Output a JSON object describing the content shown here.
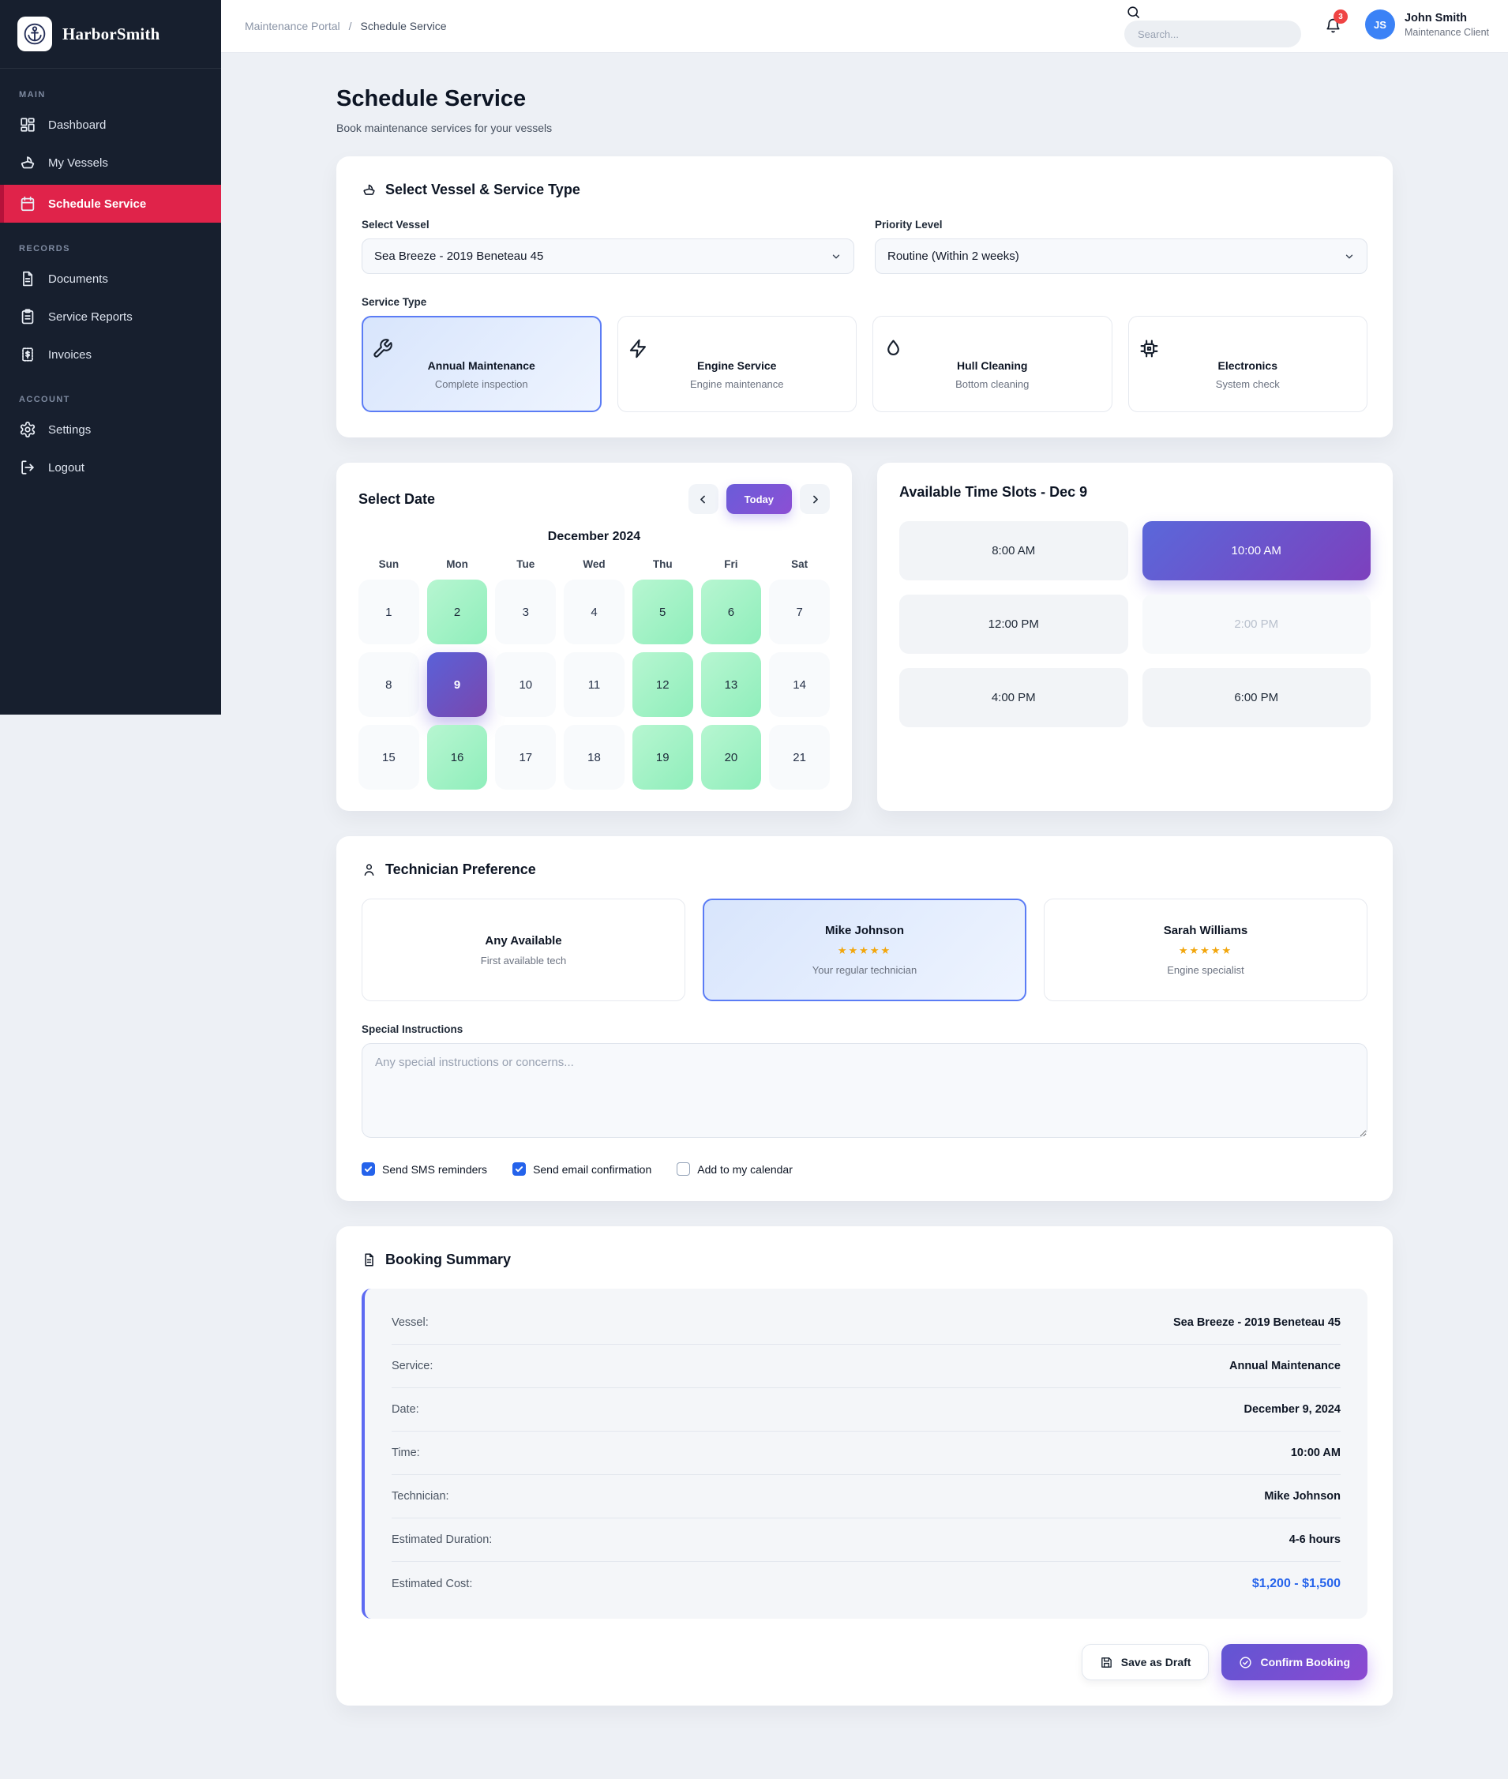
{
  "brand": {
    "name": "HarborSmith"
  },
  "sidebar": {
    "sections": [
      {
        "label": "MAIN",
        "items": [
          {
            "label": "Dashboard",
            "icon": "dashboard-icon",
            "active": false
          },
          {
            "label": "My Vessels",
            "icon": "boat-icon",
            "active": false
          },
          {
            "label": "Schedule Service",
            "icon": "calendar-icon",
            "active": true
          }
        ]
      },
      {
        "label": "RECORDS",
        "items": [
          {
            "label": "Documents",
            "icon": "document-icon",
            "active": false
          },
          {
            "label": "Service Reports",
            "icon": "clipboard-icon",
            "active": false
          },
          {
            "label": "Invoices",
            "icon": "invoice-icon",
            "active": false
          }
        ]
      },
      {
        "label": "ACCOUNT",
        "items": [
          {
            "label": "Settings",
            "icon": "gear-icon",
            "active": false
          },
          {
            "label": "Logout",
            "icon": "logout-icon",
            "active": false
          }
        ]
      }
    ]
  },
  "header": {
    "breadcrumb": [
      "Maintenance Portal",
      "Schedule Service"
    ],
    "breadcrumb_separator": "/",
    "search_placeholder": "Search...",
    "notification_count": "3",
    "user": {
      "initials": "JS",
      "name": "John Smith",
      "role": "Maintenance Client"
    }
  },
  "page": {
    "title": "Schedule Service",
    "subtitle": "Book maintenance services for your vessels"
  },
  "vessel_card": {
    "title": "Select Vessel & Service Type",
    "select_vessel_label": "Select Vessel",
    "select_vessel_value": "Sea Breeze - 2019 Beneteau 45",
    "priority_label": "Priority Level",
    "priority_value": "Routine (Within 2 weeks)",
    "service_type_label": "Service Type",
    "service_types": [
      {
        "name": "Annual Maintenance",
        "desc": "Complete inspection",
        "icon": "wrench-icon",
        "selected": true
      },
      {
        "name": "Engine Service",
        "desc": "Engine maintenance",
        "icon": "lightning-icon",
        "selected": false
      },
      {
        "name": "Hull Cleaning",
        "desc": "Bottom cleaning",
        "icon": "droplet-icon",
        "selected": false
      },
      {
        "name": "Electronics",
        "desc": "System check",
        "icon": "chip-icon",
        "selected": false
      }
    ]
  },
  "calendar": {
    "title": "Select Date",
    "today_label": "Today",
    "month": "December 2024",
    "day_headers": [
      "Sun",
      "Mon",
      "Tue",
      "Wed",
      "Thu",
      "Fri",
      "Sat"
    ],
    "days": [
      {
        "n": "1",
        "state": "default"
      },
      {
        "n": "2",
        "state": "available"
      },
      {
        "n": "3",
        "state": "default"
      },
      {
        "n": "4",
        "state": "default"
      },
      {
        "n": "5",
        "state": "available"
      },
      {
        "n": "6",
        "state": "available"
      },
      {
        "n": "7",
        "state": "default"
      },
      {
        "n": "8",
        "state": "default"
      },
      {
        "n": "9",
        "state": "selected"
      },
      {
        "n": "10",
        "state": "default"
      },
      {
        "n": "11",
        "state": "default"
      },
      {
        "n": "12",
        "state": "available"
      },
      {
        "n": "13",
        "state": "available"
      },
      {
        "n": "14",
        "state": "default"
      },
      {
        "n": "15",
        "state": "default"
      },
      {
        "n": "16",
        "state": "available"
      },
      {
        "n": "17",
        "state": "default"
      },
      {
        "n": "18",
        "state": "default"
      },
      {
        "n": "19",
        "state": "available"
      },
      {
        "n": "20",
        "state": "available"
      },
      {
        "n": "21",
        "state": "default"
      }
    ]
  },
  "timeslots": {
    "title": "Available Time Slots - Dec 9",
    "slots": [
      {
        "label": "8:00 AM",
        "state": "default"
      },
      {
        "label": "10:00 AM",
        "state": "selected"
      },
      {
        "label": "12:00 PM",
        "state": "default"
      },
      {
        "label": "2:00 PM",
        "state": "disabled"
      },
      {
        "label": "4:00 PM",
        "state": "default"
      },
      {
        "label": "6:00 PM",
        "state": "default"
      }
    ]
  },
  "technician": {
    "title": "Technician Preference",
    "options": [
      {
        "name": "Any Available",
        "stars": "",
        "desc": "First available tech",
        "selected": false
      },
      {
        "name": "Mike Johnson",
        "stars": "★★★★★",
        "desc": "Your regular technician",
        "selected": true
      },
      {
        "name": "Sarah Williams",
        "stars": "★★★★★",
        "desc": "Engine specialist",
        "selected": false
      }
    ],
    "instructions_label": "Special Instructions",
    "instructions_placeholder": "Any special instructions or concerns...",
    "checkboxes": [
      {
        "label": "Send SMS reminders",
        "checked": true
      },
      {
        "label": "Send email confirmation",
        "checked": true
      },
      {
        "label": "Add to my calendar",
        "checked": false
      }
    ]
  },
  "summary": {
    "title": "Booking Summary",
    "rows": [
      {
        "label": "Vessel:",
        "value": "Sea Breeze - 2019 Beneteau 45",
        "highlight": false
      },
      {
        "label": "Service:",
        "value": "Annual Maintenance",
        "highlight": false
      },
      {
        "label": "Date:",
        "value": "December 9, 2024",
        "highlight": false
      },
      {
        "label": "Time:",
        "value": "10:00 AM",
        "highlight": false
      },
      {
        "label": "Technician:",
        "value": "Mike Johnson",
        "highlight": false
      },
      {
        "label": "Estimated Duration:",
        "value": "4-6 hours",
        "highlight": false
      },
      {
        "label": "Estimated Cost:",
        "value": "$1,200 - $1,500",
        "highlight": true
      }
    ],
    "save_draft_label": "Save as Draft",
    "confirm_label": "Confirm Booking"
  },
  "colors": {
    "sidebar_active_red": "#e0234a",
    "sidebar_active_border": "#b5123a",
    "selected_gradient_start": "#5a61d8",
    "selected_gradient_end": "#7a47ae",
    "available_green_start": "#b7f6d1",
    "available_green_end": "#8feebb",
    "selection_border_blue": "#5b7cf5",
    "cost_blue": "#2563eb",
    "badge_red": "#ef4444",
    "avatar_blue": "#3b82f6"
  }
}
